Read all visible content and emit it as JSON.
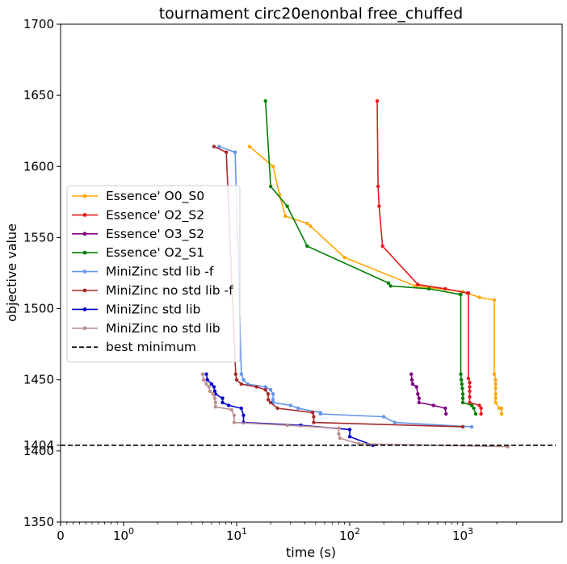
{
  "chart_data": {
    "type": "line",
    "title": "tournament circ20enonbal free_chuffed",
    "xlabel": "time (s)",
    "ylabel": "objective value",
    "xscale": "symlog",
    "xlim": [
      0,
      3500
    ],
    "ylim": [
      1350,
      1700
    ],
    "xticks": [
      {
        "value": 0,
        "label": "0"
      },
      {
        "value": 1,
        "label": "10^0"
      },
      {
        "value": 10,
        "label": "10^1"
      },
      {
        "value": 100,
        "label": "10^2"
      },
      {
        "value": 1000,
        "label": "10^3"
      }
    ],
    "yticks": [
      1350,
      1400,
      1404,
      1450,
      1500,
      1550,
      1600,
      1650,
      1700
    ],
    "legend_position": "center-left",
    "reference_line": {
      "name": "best minimum",
      "y": 1404,
      "style": "dashed",
      "color": "#000000"
    },
    "series": [
      {
        "name": "Essence' O0_S0",
        "color": "#ffa500",
        "points": [
          [
            13,
            1614
          ],
          [
            21,
            1600
          ],
          [
            24,
            1580
          ],
          [
            27,
            1565
          ],
          [
            42,
            1560
          ],
          [
            45,
            1558
          ],
          [
            90,
            1536
          ],
          [
            380,
            1516
          ],
          [
            1000,
            1512
          ],
          [
            1400,
            1508
          ],
          [
            1900,
            1506
          ],
          [
            1900,
            1454
          ],
          [
            1950,
            1450
          ],
          [
            1950,
            1447
          ],
          [
            1950,
            1444
          ],
          [
            1950,
            1440
          ],
          [
            1950,
            1437
          ],
          [
            1950,
            1434
          ],
          [
            2100,
            1430
          ],
          [
            2200,
            1430
          ],
          [
            2200,
            1426
          ]
        ]
      },
      {
        "name": "Essence' O2_S2",
        "color": "#e41a1c",
        "points": [
          [
            175,
            1646
          ],
          [
            178,
            1586
          ],
          [
            182,
            1572
          ],
          [
            195,
            1544
          ],
          [
            400,
            1517
          ],
          [
            700,
            1514
          ],
          [
            1100,
            1511
          ],
          [
            1120,
            1511
          ],
          [
            1120,
            1451
          ],
          [
            1150,
            1448
          ],
          [
            1150,
            1445
          ],
          [
            1150,
            1442
          ],
          [
            1150,
            1438
          ],
          [
            1150,
            1434
          ],
          [
            1400,
            1432
          ],
          [
            1450,
            1430
          ],
          [
            1450,
            1426
          ]
        ]
      },
      {
        "name": "Essence' O3_S2",
        "color": "#800080",
        "points": [
          [
            350,
            1454
          ],
          [
            355,
            1450
          ],
          [
            360,
            1447
          ],
          [
            390,
            1445
          ],
          [
            400,
            1440
          ],
          [
            410,
            1437
          ],
          [
            410,
            1434
          ],
          [
            550,
            1432
          ],
          [
            700,
            1430
          ],
          [
            710,
            1426
          ]
        ]
      },
      {
        "name": "Essence' O2_S1",
        "color": "#008000",
        "points": [
          [
            18,
            1646
          ],
          [
            20,
            1586
          ],
          [
            28,
            1572
          ],
          [
            42,
            1544
          ],
          [
            220,
            1518
          ],
          [
            230,
            1516
          ],
          [
            500,
            1514
          ],
          [
            950,
            1510
          ],
          [
            960,
            1510
          ],
          [
            960,
            1454
          ],
          [
            970,
            1450
          ],
          [
            980,
            1447
          ],
          [
            990,
            1444
          ],
          [
            1000,
            1440
          ],
          [
            1000,
            1437
          ],
          [
            1000,
            1434
          ],
          [
            1200,
            1432
          ],
          [
            1250,
            1430
          ],
          [
            1300,
            1426
          ]
        ]
      },
      {
        "name": "MiniZinc std lib  -f",
        "color": "#6495ed",
        "points": [
          [
            7,
            1614
          ],
          [
            9.7,
            1610
          ],
          [
            11,
            1454
          ],
          [
            11.5,
            1450
          ],
          [
            12.5,
            1447
          ],
          [
            18,
            1445
          ],
          [
            20,
            1443
          ],
          [
            21,
            1440
          ],
          [
            21,
            1436
          ],
          [
            21,
            1434
          ],
          [
            30,
            1432
          ],
          [
            35,
            1430
          ],
          [
            55,
            1427
          ],
          [
            55,
            1426
          ],
          [
            200,
            1424
          ],
          [
            250,
            1420
          ],
          [
            1200,
            1417
          ]
        ]
      },
      {
        "name": "MiniZinc no std lib -f",
        "color": "#a52a2a",
        "points": [
          [
            6.3,
            1614
          ],
          [
            8.1,
            1610
          ],
          [
            9.8,
            1454
          ],
          [
            10,
            1450
          ],
          [
            11,
            1447
          ],
          [
            15,
            1445
          ],
          [
            18,
            1443
          ],
          [
            19,
            1440
          ],
          [
            19,
            1436
          ],
          [
            20,
            1434
          ],
          [
            23,
            1430
          ],
          [
            47,
            1427
          ],
          [
            48,
            1424
          ],
          [
            48,
            1420
          ],
          [
            1000,
            1417
          ]
        ]
      },
      {
        "name": "MiniZinc std lib",
        "color": "#0000cd",
        "points": [
          [
            5.4,
            1454
          ],
          [
            5.5,
            1450
          ],
          [
            6,
            1447
          ],
          [
            6.3,
            1445
          ],
          [
            6.4,
            1442
          ],
          [
            6.5,
            1440
          ],
          [
            7.5,
            1437
          ],
          [
            7.5,
            1434
          ],
          [
            8.5,
            1432
          ],
          [
            11,
            1430
          ],
          [
            11.5,
            1425
          ],
          [
            11.5,
            1420
          ],
          [
            37,
            1418
          ],
          [
            100,
            1415
          ],
          [
            100,
            1410
          ],
          [
            160,
            1404
          ]
        ]
      },
      {
        "name": "MiniZinc no std lib",
        "color": "#bc8f8f",
        "points": [
          [
            5,
            1454
          ],
          [
            5.1,
            1450
          ],
          [
            5.4,
            1447
          ],
          [
            5.7,
            1445
          ],
          [
            5.8,
            1442
          ],
          [
            6.2,
            1440
          ],
          [
            6.4,
            1437
          ],
          [
            6.5,
            1434
          ],
          [
            6.5,
            1431
          ],
          [
            9,
            1429
          ],
          [
            9.5,
            1425
          ],
          [
            9.5,
            1420
          ],
          [
            28,
            1418
          ],
          [
            80,
            1416
          ],
          [
            80,
            1412
          ],
          [
            82,
            1409
          ],
          [
            120,
            1405
          ],
          [
            2500,
            1403
          ]
        ]
      }
    ]
  }
}
